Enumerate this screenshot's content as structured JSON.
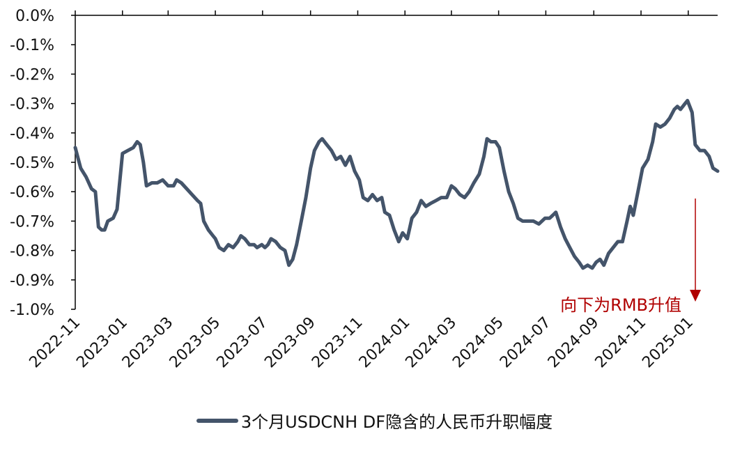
{
  "colors": {
    "series": "#44546a",
    "annotation": "#b00000",
    "axis": "#000000"
  },
  "chart_data": {
    "type": "line",
    "ylim": [
      -1.0,
      0.0
    ],
    "y_ticks": [
      "0.0%",
      "-0.1%",
      "-0.2%",
      "-0.3%",
      "-0.4%",
      "-0.5%",
      "-0.6%",
      "-0.7%",
      "-0.8%",
      "-0.9%",
      "-1.0%"
    ],
    "x_ticks": [
      "2022-11",
      "2023-01",
      "2023-03",
      "2023-05",
      "2023-07",
      "2023-09",
      "2023-11",
      "2024-01",
      "2024-03",
      "2024-05",
      "2024-07",
      "2024-09",
      "2024-11",
      "2025-01"
    ],
    "legend_position": "bottom",
    "grid": false,
    "annotation": {
      "text": "向下为RMB升值"
    },
    "series": [
      {
        "name": "3个月USDCNH DF隐含的人民币升职幅度",
        "points": [
          [
            "2022-11-01",
            -0.45
          ],
          [
            "2022-11-08",
            -0.52
          ],
          [
            "2022-11-15",
            -0.55
          ],
          [
            "2022-11-22",
            -0.59
          ],
          [
            "2022-11-27",
            -0.6
          ],
          [
            "2022-12-01",
            -0.72
          ],
          [
            "2022-12-05",
            -0.73
          ],
          [
            "2022-12-09",
            -0.73
          ],
          [
            "2022-12-13",
            -0.7
          ],
          [
            "2022-12-20",
            -0.69
          ],
          [
            "2022-12-25",
            -0.66
          ],
          [
            "2023-01-01",
            -0.47
          ],
          [
            "2023-01-08",
            -0.46
          ],
          [
            "2023-01-15",
            -0.45
          ],
          [
            "2023-01-20",
            -0.43
          ],
          [
            "2023-01-24",
            -0.44
          ],
          [
            "2023-01-28",
            -0.5
          ],
          [
            "2023-02-01",
            -0.58
          ],
          [
            "2023-02-08",
            -0.57
          ],
          [
            "2023-02-15",
            -0.57
          ],
          [
            "2023-02-22",
            -0.56
          ],
          [
            "2023-03-01",
            -0.58
          ],
          [
            "2023-03-08",
            -0.58
          ],
          [
            "2023-03-12",
            -0.56
          ],
          [
            "2023-03-18",
            -0.57
          ],
          [
            "2023-03-25",
            -0.59
          ],
          [
            "2023-04-01",
            -0.61
          ],
          [
            "2023-04-08",
            -0.63
          ],
          [
            "2023-04-12",
            -0.64
          ],
          [
            "2023-04-16",
            -0.7
          ],
          [
            "2023-04-22",
            -0.73
          ],
          [
            "2023-04-28",
            -0.75
          ],
          [
            "2023-05-01",
            -0.76
          ],
          [
            "2023-05-06",
            -0.79
          ],
          [
            "2023-05-12",
            -0.8
          ],
          [
            "2023-05-18",
            -0.78
          ],
          [
            "2023-05-24",
            -0.79
          ],
          [
            "2023-05-30",
            -0.77
          ],
          [
            "2023-06-03",
            -0.75
          ],
          [
            "2023-06-08",
            -0.76
          ],
          [
            "2023-06-14",
            -0.78
          ],
          [
            "2023-06-20",
            -0.78
          ],
          [
            "2023-06-24",
            -0.79
          ],
          [
            "2023-06-30",
            -0.78
          ],
          [
            "2023-07-04",
            -0.79
          ],
          [
            "2023-07-08",
            -0.78
          ],
          [
            "2023-07-12",
            -0.76
          ],
          [
            "2023-07-18",
            -0.77
          ],
          [
            "2023-07-24",
            -0.79
          ],
          [
            "2023-07-30",
            -0.8
          ],
          [
            "2023-08-04",
            -0.85
          ],
          [
            "2023-08-09",
            -0.83
          ],
          [
            "2023-08-14",
            -0.78
          ],
          [
            "2023-08-20",
            -0.7
          ],
          [
            "2023-08-26",
            -0.62
          ],
          [
            "2023-09-01",
            -0.52
          ],
          [
            "2023-09-06",
            -0.46
          ],
          [
            "2023-09-12",
            -0.43
          ],
          [
            "2023-09-16",
            -0.42
          ],
          [
            "2023-09-22",
            -0.44
          ],
          [
            "2023-09-28",
            -0.46
          ],
          [
            "2023-10-04",
            -0.49
          ],
          [
            "2023-10-10",
            -0.48
          ],
          [
            "2023-10-16",
            -0.51
          ],
          [
            "2023-10-22",
            -0.48
          ],
          [
            "2023-10-28",
            -0.53
          ],
          [
            "2023-11-03",
            -0.56
          ],
          [
            "2023-11-08",
            -0.62
          ],
          [
            "2023-11-14",
            -0.63
          ],
          [
            "2023-11-20",
            -0.61
          ],
          [
            "2023-11-26",
            -0.63
          ],
          [
            "2023-12-02",
            -0.62
          ],
          [
            "2023-12-06",
            -0.67
          ],
          [
            "2023-12-12",
            -0.68
          ],
          [
            "2023-12-18",
            -0.73
          ],
          [
            "2023-12-24",
            -0.77
          ],
          [
            "2023-12-29",
            -0.74
          ],
          [
            "2024-01-04",
            -0.76
          ],
          [
            "2024-01-10",
            -0.69
          ],
          [
            "2024-01-16",
            -0.67
          ],
          [
            "2024-01-22",
            -0.63
          ],
          [
            "2024-01-28",
            -0.65
          ],
          [
            "2024-02-03",
            -0.64
          ],
          [
            "2024-02-10",
            -0.63
          ],
          [
            "2024-02-17",
            -0.62
          ],
          [
            "2024-02-24",
            -0.62
          ],
          [
            "2024-03-01",
            -0.58
          ],
          [
            "2024-03-06",
            -0.59
          ],
          [
            "2024-03-12",
            -0.61
          ],
          [
            "2024-03-18",
            -0.62
          ],
          [
            "2024-03-24",
            -0.6
          ],
          [
            "2024-03-30",
            -0.57
          ],
          [
            "2024-04-06",
            -0.54
          ],
          [
            "2024-04-12",
            -0.48
          ],
          [
            "2024-04-16",
            -0.42
          ],
          [
            "2024-04-21",
            -0.43
          ],
          [
            "2024-04-27",
            -0.43
          ],
          [
            "2024-05-02",
            -0.45
          ],
          [
            "2024-05-08",
            -0.53
          ],
          [
            "2024-05-14",
            -0.6
          ],
          [
            "2024-05-20",
            -0.64
          ],
          [
            "2024-05-26",
            -0.69
          ],
          [
            "2024-06-01",
            -0.7
          ],
          [
            "2024-06-08",
            -0.7
          ],
          [
            "2024-06-15",
            -0.7
          ],
          [
            "2024-06-22",
            -0.71
          ],
          [
            "2024-06-30",
            -0.69
          ],
          [
            "2024-07-06",
            -0.69
          ],
          [
            "2024-07-10",
            -0.68
          ],
          [
            "2024-07-14",
            -0.67
          ],
          [
            "2024-07-20",
            -0.72
          ],
          [
            "2024-07-26",
            -0.76
          ],
          [
            "2024-08-01",
            -0.79
          ],
          [
            "2024-08-07",
            -0.82
          ],
          [
            "2024-08-13",
            -0.84
          ],
          [
            "2024-08-18",
            -0.86
          ],
          [
            "2024-08-24",
            -0.85
          ],
          [
            "2024-08-30",
            -0.86
          ],
          [
            "2024-09-04",
            -0.84
          ],
          [
            "2024-09-09",
            -0.83
          ],
          [
            "2024-09-14",
            -0.85
          ],
          [
            "2024-09-20",
            -0.81
          ],
          [
            "2024-09-26",
            -0.79
          ],
          [
            "2024-10-02",
            -0.77
          ],
          [
            "2024-10-08",
            -0.77
          ],
          [
            "2024-10-14",
            -0.7
          ],
          [
            "2024-10-18",
            -0.65
          ],
          [
            "2024-10-22",
            -0.68
          ],
          [
            "2024-10-28",
            -0.6
          ],
          [
            "2024-11-03",
            -0.52
          ],
          [
            "2024-11-10",
            -0.49
          ],
          [
            "2024-11-16",
            -0.43
          ],
          [
            "2024-11-20",
            -0.37
          ],
          [
            "2024-11-26",
            -0.38
          ],
          [
            "2024-12-02",
            -0.37
          ],
          [
            "2024-12-08",
            -0.35
          ],
          [
            "2024-12-14",
            -0.32
          ],
          [
            "2024-12-18",
            -0.31
          ],
          [
            "2024-12-22",
            -0.32
          ],
          [
            "2024-12-28",
            -0.3
          ],
          [
            "2024-12-31",
            -0.29
          ],
          [
            "2025-01-06",
            -0.33
          ],
          [
            "2025-01-10",
            -0.44
          ],
          [
            "2025-01-16",
            -0.46
          ],
          [
            "2025-01-22",
            -0.46
          ],
          [
            "2025-01-28",
            -0.48
          ],
          [
            "2025-02-02",
            -0.52
          ],
          [
            "2025-02-08",
            -0.53
          ]
        ]
      }
    ]
  }
}
